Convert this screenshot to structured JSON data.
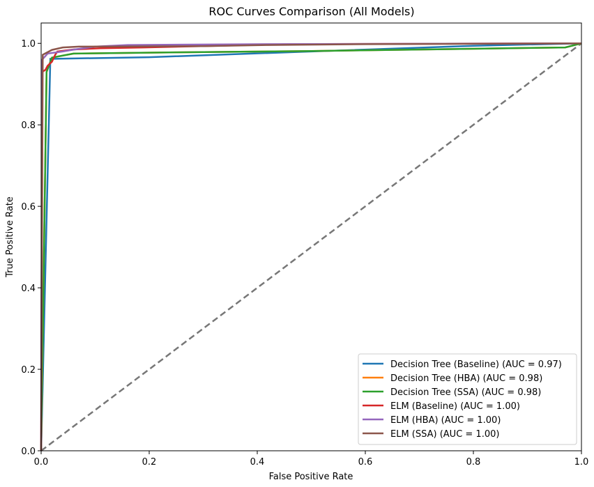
{
  "chart_data": {
    "type": "line",
    "title": "ROC Curves Comparison (All Models)",
    "xlabel": "False Positive Rate",
    "ylabel": "True Positive Rate",
    "xlim": [
      0,
      1
    ],
    "ylim": [
      0,
      1.05
    ],
    "xticks": [
      0.0,
      0.2,
      0.4,
      0.6,
      0.8,
      1.0
    ],
    "yticks": [
      0.0,
      0.2,
      0.4,
      0.6,
      0.8,
      1.0
    ],
    "xtick_labels": [
      "0.0",
      "0.2",
      "0.4",
      "0.6",
      "0.8",
      "1.0"
    ],
    "ytick_labels": [
      "0.0",
      "0.2",
      "0.4",
      "0.6",
      "0.8",
      "1.0"
    ],
    "grid": false,
    "legend_position": "bottom-right",
    "series": [
      {
        "name": "Decision Tree (Baseline) (AUC = 0.97)",
        "color": "#1f77b4",
        "points": [
          [
            0,
            0
          ],
          [
            0.017,
            0.962
          ],
          [
            0.2,
            0.966
          ],
          [
            0.5,
            0.98
          ],
          [
            0.8,
            0.994
          ],
          [
            1.0,
            1.0
          ]
        ]
      },
      {
        "name": "Decision Tree (HBA) (AUC = 0.98)",
        "color": "#ff7f0e",
        "points": [
          [
            0,
            0
          ],
          [
            0.01,
            0.93
          ],
          [
            0.02,
            0.965
          ],
          [
            0.06,
            0.975
          ],
          [
            0.25,
            0.978
          ],
          [
            0.5,
            0.981
          ],
          [
            0.97,
            0.99
          ],
          [
            1.0,
            1.0
          ]
        ]
      },
      {
        "name": "Decision Tree (SSA) (AUC = 0.98)",
        "color": "#2ca02c",
        "points": [
          [
            0,
            0
          ],
          [
            0.01,
            0.93
          ],
          [
            0.02,
            0.965
          ],
          [
            0.06,
            0.975
          ],
          [
            0.25,
            0.978
          ],
          [
            0.5,
            0.981
          ],
          [
            0.97,
            0.99
          ],
          [
            1.0,
            1.0
          ]
        ]
      },
      {
        "name": "ELM (Baseline) (AUC = 1.00)",
        "color": "#d62728",
        "points": [
          [
            0,
            0
          ],
          [
            0.002,
            0.93
          ],
          [
            0.008,
            0.935
          ],
          [
            0.012,
            0.945
          ],
          [
            0.02,
            0.955
          ],
          [
            0.026,
            0.972
          ],
          [
            0.03,
            0.98
          ],
          [
            0.06,
            0.985
          ],
          [
            0.11,
            0.988
          ],
          [
            0.19,
            0.99
          ],
          [
            0.46,
            0.998
          ],
          [
            1.0,
            1.0
          ]
        ]
      },
      {
        "name": "ELM (HBA) (AUC = 1.00)",
        "color": "#9467bd",
        "points": [
          [
            0,
            0
          ],
          [
            0.002,
            0.96
          ],
          [
            0.012,
            0.975
          ],
          [
            0.04,
            0.98
          ],
          [
            0.062,
            0.985
          ],
          [
            0.1,
            0.992
          ],
          [
            0.16,
            0.996
          ],
          [
            0.42,
            0.998
          ],
          [
            1.0,
            1.0
          ]
        ]
      },
      {
        "name": "ELM (SSA) (AUC = 1.00)",
        "color": "#8c564b",
        "points": [
          [
            0,
            0
          ],
          [
            0.003,
            0.972
          ],
          [
            0.02,
            0.984
          ],
          [
            0.04,
            0.99
          ],
          [
            0.07,
            0.992
          ],
          [
            0.3,
            0.993
          ],
          [
            0.42,
            0.996
          ],
          [
            0.6,
            0.998
          ],
          [
            1.0,
            1.0
          ]
        ]
      }
    ],
    "reference_line": {
      "color": "#777777",
      "points": [
        [
          0,
          0
        ],
        [
          1,
          1
        ]
      ]
    }
  }
}
